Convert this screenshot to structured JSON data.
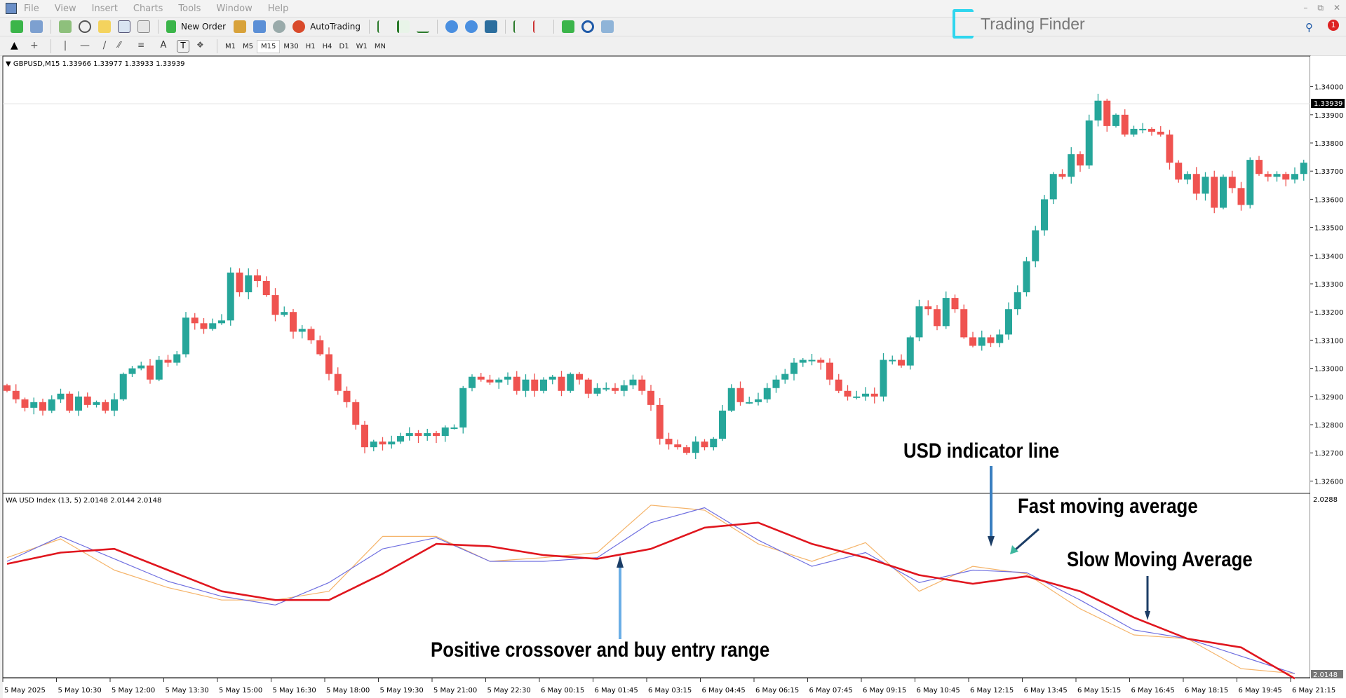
{
  "menu": [
    "File",
    "View",
    "Insert",
    "Charts",
    "Tools",
    "Window",
    "Help"
  ],
  "toolbar": {
    "new_order": "New Order",
    "autotrading": "AutoTrading",
    "timeframes": [
      "M1",
      "M5",
      "M15",
      "M30",
      "H1",
      "H4",
      "D1",
      "W1",
      "MN"
    ],
    "active_timeframe": "M15"
  },
  "logo": "Trading Finder",
  "notification_count": "1",
  "chart": {
    "header": "GBPUSD,M15  1.33966 1.33977 1.33933 1.33939",
    "current_price": "1.33939",
    "indicator_header": "WA USD Index (13, 5) 2.0148 2.0144 2.0148",
    "indicator_top_label": "2.0288",
    "indicator_bottom_label": "2.0148",
    "colors": {
      "bull": "#26a69a",
      "bear": "#ef5350",
      "usd_line": "#f5b46a",
      "fast_ma": "#6f6fe0",
      "slow_ma": "#e0161e"
    }
  },
  "annotations": {
    "usd_line": "USD indicator line",
    "fast_ma": "Fast moving average",
    "slow_ma": "Slow Moving Average",
    "crossover": "Positive crossover and buy entry range"
  },
  "chart_data": [
    {
      "type": "candlestick",
      "symbol": "GBPUSD",
      "timeframe": "M15",
      "ylim": [
        1.3255,
        1.3412
      ],
      "price_ticks": [
        "1.34000",
        "1.33900",
        "1.33800",
        "1.33700",
        "1.33600",
        "1.33500",
        "1.33400",
        "1.33300",
        "1.33200",
        "1.33100",
        "1.33000",
        "1.32900",
        "1.32800",
        "1.32700",
        "1.32600"
      ],
      "time_ticks": [
        "5 May 2025",
        "5 May 10:30",
        "5 May 12:00",
        "5 May 13:30",
        "5 May 15:00",
        "5 May 16:30",
        "5 May 18:00",
        "5 May 19:30",
        "5 May 21:00",
        "5 May 22:30",
        "6 May 00:15",
        "6 May 01:45",
        "6 May 03:15",
        "6 May 04:45",
        "6 May 06:15",
        "6 May 07:45",
        "6 May 09:15",
        "6 May 10:45",
        "6 May 12:15",
        "6 May 13:45",
        "6 May 15:15",
        "6 May 16:45",
        "6 May 18:15",
        "6 May 19:45",
        "6 May 21:15"
      ],
      "first_open": 1.3294,
      "closes": [
        1.3292,
        1.3289,
        1.3286,
        1.3288,
        1.3285,
        1.3289,
        1.3291,
        1.3285,
        1.329,
        1.3287,
        1.3288,
        1.3285,
        1.3289,
        1.3298,
        1.33,
        1.3301,
        1.3296,
        1.3303,
        1.3302,
        1.3305,
        1.3318,
        1.3316,
        1.3314,
        1.3316,
        1.3317,
        1.3334,
        1.3327,
        1.3333,
        1.3331,
        1.3326,
        1.3319,
        1.332,
        1.3313,
        1.3314,
        1.331,
        1.3305,
        1.3298,
        1.3292,
        1.3288,
        1.328,
        1.3272,
        1.3274,
        1.3273,
        1.3274,
        1.3276,
        1.3277,
        1.3276,
        1.3277,
        1.3276,
        1.3279,
        1.3279,
        1.3293,
        1.3297,
        1.3296,
        1.3295,
        1.3296,
        1.3297,
        1.3292,
        1.3296,
        1.3292,
        1.3296,
        1.3297,
        1.3292,
        1.3298,
        1.3296,
        1.3291,
        1.3293,
        1.3293,
        1.3292,
        1.3294,
        1.3296,
        1.3292,
        1.3287,
        1.3275,
        1.3273,
        1.3272,
        1.327,
        1.3274,
        1.3272,
        1.3275,
        1.3285,
        1.3293,
        1.3288,
        1.3288,
        1.3289,
        1.3293,
        1.3296,
        1.3298,
        1.3302,
        1.3303,
        1.3303,
        1.3302,
        1.3296,
        1.3292,
        1.329,
        1.329,
        1.3291,
        1.329,
        1.3303,
        1.3303,
        1.3301,
        1.3311,
        1.3322,
        1.3321,
        1.3315,
        1.3325,
        1.3321,
        1.3311,
        1.3308,
        1.3311,
        1.3309,
        1.3312,
        1.3321,
        1.3327,
        1.3338,
        1.3349,
        1.336,
        1.3369,
        1.3368,
        1.3376,
        1.3372,
        1.3388,
        1.3395,
        1.3386,
        1.339,
        1.3383,
        1.3385,
        1.3385,
        1.3384,
        1.3383,
        1.3373,
        1.3367,
        1.3369,
        1.3362,
        1.3368,
        1.3357,
        1.3368,
        1.3364,
        1.3358,
        1.3374,
        1.3369,
        1.3368,
        1.3369,
        1.3367,
        1.3369,
        1.3373
      ]
    },
    {
      "type": "line",
      "title": "WA USD Index (13, 5)",
      "ylim": [
        2.0147,
        2.0288
      ],
      "x": [
        "5 May 2025",
        "5 May 10:30",
        "5 May 12:00",
        "5 May 13:30",
        "5 May 15:00",
        "5 May 16:30",
        "5 May 18:00",
        "5 May 19:30",
        "5 May 21:00",
        "5 May 22:30",
        "6 May 00:15",
        "6 May 01:45",
        "6 May 03:15",
        "6 May 04:45",
        "6 May 06:15",
        "6 May 07:45",
        "6 May 09:15",
        "6 May 10:45",
        "6 May 12:15",
        "6 May 13:45",
        "6 May 15:15",
        "6 May 16:45",
        "6 May 18:15",
        "6 May 19:45",
        "6 May 21:15"
      ],
      "series": [
        {
          "name": "USD indicator line",
          "key": "usd_line",
          "values": [
            2.0241,
            2.0256,
            2.0231,
            2.0217,
            2.0207,
            2.0207,
            2.0214,
            2.0258,
            2.0258,
            2.0238,
            2.0241,
            2.0245,
            2.0283,
            2.0279,
            2.0252,
            2.0238,
            2.0253,
            2.0214,
            2.0234,
            2.0228,
            2.02,
            2.0179,
            2.0176,
            2.0152,
            2.0148
          ]
        },
        {
          "name": "Fast moving average",
          "key": "fast_ma",
          "values": [
            2.0238,
            2.0258,
            2.024,
            2.0222,
            2.021,
            2.0203,
            2.0221,
            2.0248,
            2.0257,
            2.0238,
            2.0238,
            2.0241,
            2.0269,
            2.0281,
            2.0255,
            2.0234,
            2.0245,
            2.0221,
            2.0231,
            2.0229,
            2.0207,
            2.0183,
            2.0176,
            2.0162,
            2.0148
          ]
        },
        {
          "name": "Slow Moving Average",
          "key": "slow_ma",
          "values": [
            2.0236,
            2.0245,
            2.0248,
            2.0231,
            2.0214,
            2.0207,
            2.0207,
            2.0228,
            2.0252,
            2.025,
            2.0243,
            2.024,
            2.0248,
            2.0265,
            2.0269,
            2.0252,
            2.0241,
            2.0227,
            2.022,
            2.0226,
            2.0214,
            2.0193,
            2.0176,
            2.0169,
            2.0144
          ]
        }
      ]
    }
  ]
}
